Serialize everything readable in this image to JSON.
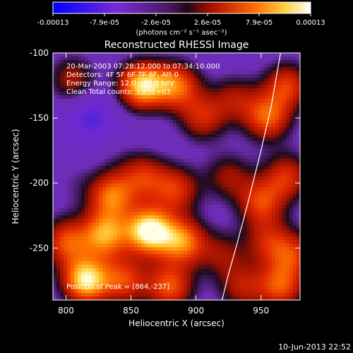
{
  "chart_data": {
    "type": "heatmap",
    "title": "Reconstructed RHESSI Image",
    "xlabel": "Heliocentric X (arcsec)",
    "ylabel": "Heliocentric Y (arcsec)",
    "xlim": [
      790,
      980
    ],
    "ylim": [
      -290,
      -100
    ],
    "x_ticks": [
      800,
      850,
      900,
      950
    ],
    "y_ticks": [
      -100,
      -150,
      -200,
      -250
    ],
    "colorbar": {
      "ticks": [
        "-0.00013",
        "-7.9e-05",
        "-2.6e-05",
        "2.6e-05",
        "7.9e-05",
        "0.00013"
      ],
      "range": [
        -0.00013,
        0.00013
      ],
      "units": "(photons cm⁻² s⁻¹ asec⁻²)",
      "colormap": [
        "#0000ff",
        "#6a2bd0",
        "#6b2db0",
        "#1a0a20",
        "#c81e00",
        "#ff6a00",
        "#ffd040",
        "#ffffff"
      ]
    },
    "annotations": [
      "20-Mar-2003 07:28:12.000 to 07:34:10.000",
      "Detectors: 4F 5F 6F 7F 8F, Att 0",
      "Energy Range: 12.0 - 25.0 keV",
      "Clean     Total counts: 3.23E+03"
    ],
    "peak_text": "Position of Peak = [864,-237]",
    "peak": [
      864,
      -237
    ],
    "limb_curve": [
      [
        920,
        -290
      ],
      [
        925,
        -270
      ],
      [
        932,
        -245
      ],
      [
        940,
        -215
      ],
      [
        950,
        -175
      ],
      [
        958,
        -140
      ],
      [
        965,
        -100
      ]
    ],
    "intensity_blobs": [
      {
        "x": 805,
        "y": -120,
        "v": 0.2
      },
      {
        "x": 820,
        "y": -150,
        "v": -0.75
      },
      {
        "x": 840,
        "y": -180,
        "v": -0.25
      },
      {
        "x": 858,
        "y": -125,
        "v": 0.85
      },
      {
        "x": 885,
        "y": -125,
        "v": 0.55
      },
      {
        "x": 905,
        "y": -150,
        "v": 0.3
      },
      {
        "x": 930,
        "y": -135,
        "v": 0.15
      },
      {
        "x": 955,
        "y": -150,
        "v": 0.5
      },
      {
        "x": 970,
        "y": -125,
        "v": 0.4
      },
      {
        "x": 805,
        "y": -200,
        "v": -0.2
      },
      {
        "x": 835,
        "y": -210,
        "v": 0.55
      },
      {
        "x": 860,
        "y": -195,
        "v": 0.3
      },
      {
        "x": 885,
        "y": -205,
        "v": 0.35
      },
      {
        "x": 925,
        "y": -195,
        "v": 0.15
      },
      {
        "x": 950,
        "y": -215,
        "v": 0.4
      },
      {
        "x": 970,
        "y": -195,
        "v": 0.35
      },
      {
        "x": 800,
        "y": -245,
        "v": 0.45
      },
      {
        "x": 830,
        "y": -240,
        "v": 0.65
      },
      {
        "x": 864,
        "y": -237,
        "v": 1.0
      },
      {
        "x": 890,
        "y": -245,
        "v": 0.6
      },
      {
        "x": 920,
        "y": -255,
        "v": 0.1
      },
      {
        "x": 955,
        "y": -245,
        "v": 0.2
      },
      {
        "x": 975,
        "y": -255,
        "v": 0.3
      },
      {
        "x": 815,
        "y": -275,
        "v": 0.9
      },
      {
        "x": 845,
        "y": -275,
        "v": 0.4
      },
      {
        "x": 880,
        "y": -280,
        "v": 0.5
      },
      {
        "x": 935,
        "y": -280,
        "v": 0.2
      },
      {
        "x": 965,
        "y": -280,
        "v": 0.45
      }
    ]
  },
  "date_stamp": "10-Jun-2013 22:52"
}
